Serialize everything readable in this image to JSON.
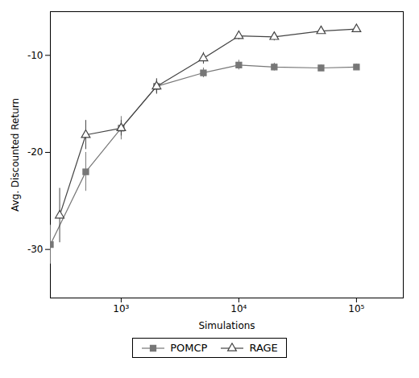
{
  "chart_data": {
    "type": "line",
    "xlabel": "Simulations",
    "ylabel": "Avg. Discounted Return",
    "log": "x",
    "xlim": [
      250,
      250000
    ],
    "xticks": [
      {
        "value": 1000,
        "label": "10³"
      },
      {
        "value": 10000,
        "label": "10⁴"
      },
      {
        "value": 100000,
        "label": "10⁵"
      }
    ],
    "ylim": [
      -35,
      -5.5
    ],
    "yticks": [
      -30,
      -20,
      -10
    ],
    "grid": false,
    "legend": "bottom",
    "series": [
      {
        "name": "POMCP",
        "color": "#777777",
        "marker": "square",
        "x": [
          250,
          500,
          1000,
          2000,
          5000,
          10000,
          20000,
          50000,
          100000
        ],
        "values": [
          -29.5,
          -22.0,
          -17.5,
          -13.2,
          -11.8,
          -11.0,
          -11.2,
          -11.3,
          -11.2
        ],
        "errors": [
          2.0,
          2.0,
          1.2,
          0.7,
          0.5,
          0.5,
          0.4,
          0.3,
          0.3
        ]
      },
      {
        "name": "RAGE",
        "color": "#444444",
        "marker": "open triangle",
        "x": [
          300,
          500,
          1000,
          2000,
          5000,
          10000,
          20000,
          50000,
          100000
        ],
        "values": [
          -26.5,
          -18.2,
          -17.5,
          -13.2,
          -10.3,
          -8.0,
          -8.1,
          -7.5,
          -7.3
        ],
        "errors": [
          2.8,
          1.5,
          0.8,
          0.8,
          0.6,
          0.4,
          0.4,
          0.3,
          0.3
        ]
      }
    ]
  }
}
